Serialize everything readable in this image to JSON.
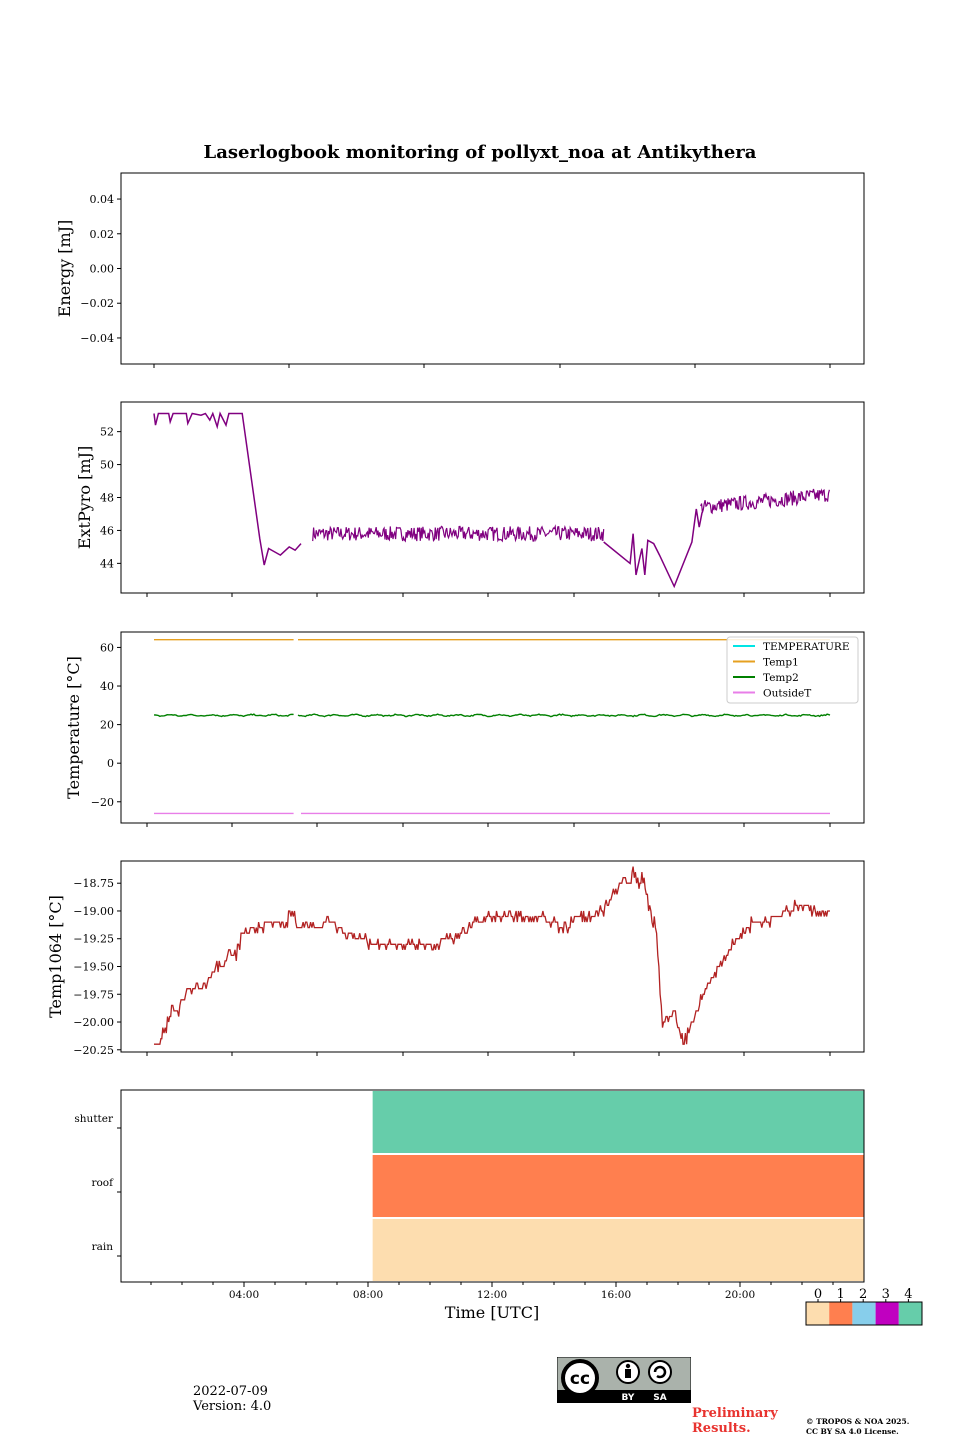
{
  "figure": {
    "title": "Laserlogbook monitoring of pollyxt_noa at Antikythera",
    "date": "2022-07-09",
    "version": "Version: 4.0",
    "preliminary": "Preliminary Results.",
    "copyright_line1": "© TROPOS & NOA 2025.",
    "copyright_line2": "CC BY SA 4.0 License.",
    "license_badge": {
      "cc": "cc",
      "by": "BY",
      "sa": "SA"
    }
  },
  "chart_data": [
    {
      "type": "line",
      "ylabel": "Energy [mJ]",
      "ylim": [
        -0.055,
        0.055
      ],
      "yticks": [
        -0.04,
        -0.02,
        0.0,
        0.02,
        0.04
      ],
      "ytick_labels": [
        "−0.04",
        "−0.02",
        "0.00",
        "0.02",
        "0.04"
      ],
      "xlim": [
        1.0,
        24.0
      ],
      "series": []
    },
    {
      "type": "line",
      "ylabel": "ExtPyro [mJ]",
      "ylim": [
        42.2,
        53.8
      ],
      "yticks": [
        44,
        46,
        48,
        50,
        52
      ],
      "ytick_labels": [
        "44",
        "46",
        "48",
        "50",
        "52"
      ],
      "xlim": [
        1.0,
        24.0
      ],
      "series": [
        {
          "color": "#800080",
          "points": [
            [
              1.0,
              53.1
            ],
            [
              1.05,
              52.4
            ],
            [
              1.15,
              53.1
            ],
            [
              1.5,
              53.1
            ],
            [
              1.55,
              52.6
            ],
            [
              1.65,
              53.1
            ],
            [
              2.1,
              53.1
            ],
            [
              2.15,
              52.5
            ],
            [
              2.3,
              53.1
            ],
            [
              2.6,
              53.0
            ],
            [
              2.75,
              53.1
            ],
            [
              2.9,
              52.7
            ],
            [
              3.0,
              53.1
            ],
            [
              3.15,
              52.3
            ],
            [
              3.25,
              53.1
            ],
            [
              3.45,
              52.4
            ],
            [
              3.55,
              53.1
            ],
            [
              4.0,
              53.1
            ],
            [
              4.6,
              45.5
            ],
            [
              4.75,
              43.9
            ],
            [
              4.9,
              44.9
            ],
            [
              5.3,
              44.5
            ],
            [
              5.6,
              45.0
            ],
            [
              5.8,
              44.8
            ],
            [
              6.0,
              45.2
            ]
          ],
          "segments": [
            {
              "x0": 6.4,
              "x1": 16.3,
              "base": 45.8,
              "amp": 0.45
            },
            {
              "x0": 19.6,
              "x1": 24.0,
              "base": 47.4,
              "amp": 0.45
            }
          ],
          "points_mid": [
            [
              16.3,
              45.3
            ],
            [
              17.2,
              44.0
            ],
            [
              17.3,
              45.8
            ],
            [
              17.4,
              43.3
            ],
            [
              17.6,
              44.9
            ],
            [
              17.7,
              43.3
            ],
            [
              17.8,
              45.4
            ],
            [
              18.0,
              45.2
            ],
            [
              18.2,
              44.5
            ],
            [
              18.7,
              42.6
            ],
            [
              19.3,
              45.3
            ],
            [
              19.45,
              47.3
            ],
            [
              19.55,
              46.2
            ],
            [
              19.65,
              47.1
            ]
          ]
        }
      ]
    },
    {
      "type": "line",
      "ylabel": "Temperature [°C]",
      "ylim": [
        -31,
        68
      ],
      "yticks": [
        -20,
        0,
        20,
        40,
        60
      ],
      "ytick_labels": [
        "−20",
        "0",
        "20",
        "40",
        "60"
      ],
      "xlim": [
        1.0,
        24.0
      ],
      "legend": [
        "TEMPERATURE",
        "Temp1",
        "Temp2",
        "OutsideT"
      ],
      "legend_placement": "upper-right",
      "series": [
        {
          "name": "TEMPERATURE",
          "color": "#00e5e5",
          "values": []
        },
        {
          "name": "Temp1",
          "color": "#e6a020",
          "constant": 64.0,
          "gaps": [
            [
              5.75,
              5.9
            ]
          ]
        },
        {
          "name": "Temp2",
          "color": "#008000",
          "base": 24.8,
          "amp": 0.6,
          "gaps": [
            [
              5.75,
              5.9
            ]
          ]
        },
        {
          "name": "OutsideT",
          "color": "#e87ee8",
          "constant": -26.0,
          "gaps": [
            [
              5.75,
              6.0
            ]
          ]
        }
      ]
    },
    {
      "type": "line",
      "ylabel": "Temp1064 [°C]",
      "ylim": [
        -20.27,
        -18.55
      ],
      "yticks": [
        -20.25,
        -20.0,
        -19.75,
        -19.5,
        -19.25,
        -19.0,
        -18.75
      ],
      "ytick_labels": [
        "−20.25",
        "−20.00",
        "−19.75",
        "−19.50",
        "−19.25",
        "−19.00",
        "−18.75"
      ],
      "xlim": [
        1.0,
        24.0
      ],
      "series": [
        {
          "color": "#b22222",
          "points": [
            [
              1.0,
              -20.2
            ],
            [
              1.2,
              -20.2
            ],
            [
              1.3,
              -20.1
            ],
            [
              1.5,
              -20.0
            ],
            [
              1.6,
              -19.9
            ],
            [
              1.8,
              -19.9
            ],
            [
              2.0,
              -19.8
            ],
            [
              2.2,
              -19.7
            ],
            [
              2.6,
              -19.7
            ],
            [
              2.9,
              -19.6
            ],
            [
              3.1,
              -19.5
            ],
            [
              3.3,
              -19.5
            ],
            [
              3.5,
              -19.4
            ],
            [
              3.8,
              -19.4
            ],
            [
              4.0,
              -19.2
            ],
            [
              5.0,
              -19.1
            ],
            [
              5.5,
              -19.1
            ],
            [
              5.7,
              -19.0
            ],
            [
              5.9,
              -19.15
            ],
            [
              6.2,
              -19.1
            ],
            [
              6.5,
              -19.15
            ],
            [
              7.0,
              -19.1
            ],
            [
              7.5,
              -19.2
            ],
            [
              8.0,
              -19.25
            ],
            [
              8.5,
              -19.3
            ],
            [
              9.5,
              -19.3
            ],
            [
              10.5,
              -19.3
            ],
            [
              11.0,
              -19.25
            ],
            [
              11.5,
              -19.2
            ],
            [
              12.0,
              -19.1
            ],
            [
              12.5,
              -19.05
            ],
            [
              13.0,
              -19.05
            ],
            [
              14.0,
              -19.05
            ],
            [
              14.5,
              -19.1
            ],
            [
              15.0,
              -19.15
            ],
            [
              15.5,
              -19.05
            ],
            [
              16.0,
              -19.05
            ],
            [
              16.3,
              -19.0
            ],
            [
              17.0,
              -18.7
            ],
            [
              17.2,
              -18.8
            ],
            [
              17.3,
              -18.65
            ],
            [
              17.5,
              -18.8
            ],
            [
              17.6,
              -18.7
            ],
            [
              17.75,
              -18.85
            ],
            [
              18.1,
              -19.2
            ],
            [
              18.3,
              -20.0
            ],
            [
              18.7,
              -19.9
            ],
            [
              18.9,
              -20.1
            ],
            [
              19.0,
              -20.2
            ],
            [
              19.2,
              -20.1
            ],
            [
              19.4,
              -19.95
            ],
            [
              19.8,
              -19.7
            ],
            [
              20.2,
              -19.5
            ],
            [
              20.6,
              -19.35
            ],
            [
              21.0,
              -19.2
            ],
            [
              21.4,
              -19.1
            ],
            [
              21.8,
              -19.1
            ],
            [
              22.2,
              -19.05
            ],
            [
              22.6,
              -19.0
            ],
            [
              23.0,
              -18.95
            ],
            [
              23.5,
              -19.0
            ],
            [
              24.0,
              -19.0
            ]
          ]
        }
      ]
    },
    {
      "type": "heatmap",
      "rows": [
        "rain",
        "roof",
        "shutter"
      ],
      "xlabel": "Time [UTC]",
      "xlim": [
        0,
        24
      ],
      "xticks": [
        4,
        8,
        12,
        16,
        20
      ],
      "xtick_labels": [
        "04:00",
        "08:00",
        "12:00",
        "16:00",
        "20:00"
      ],
      "blocks": [
        {
          "row": "rain",
          "x0": 8.15,
          "x1": 24.0,
          "level": 0
        },
        {
          "row": "roof",
          "x0": 8.15,
          "x1": 24.0,
          "level": 1
        },
        {
          "row": "shutter",
          "x0": 8.15,
          "x1": 24.0,
          "level": 4
        }
      ],
      "colorbar": {
        "ticks": [
          "0",
          "1",
          "2",
          "3",
          "4"
        ],
        "colors": [
          "#fdddaf",
          "#ff7f4f",
          "#87ceeb",
          "#c000c0",
          "#66cdaa"
        ]
      }
    }
  ]
}
